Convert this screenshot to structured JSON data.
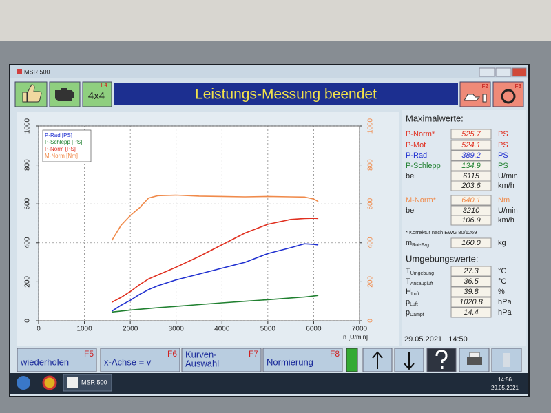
{
  "window": {
    "title": "MSR 500"
  },
  "header": {
    "title": "Leistungs-Messung beendet",
    "mode_button": "4x4",
    "mode_key": "F4",
    "right_keys": [
      "F2",
      "F3"
    ]
  },
  "chart_data": {
    "type": "line",
    "x_label": "n [U/min]",
    "x": [
      1600,
      1800,
      2000,
      2200,
      2400,
      2600,
      3000,
      3500,
      4000,
      4500,
      5000,
      5500,
      5800,
      6000,
      6100
    ],
    "series": [
      {
        "name": "P-Rad [PS]",
        "color": "#2030d0",
        "values": [
          50,
          80,
          105,
          135,
          160,
          180,
          210,
          240,
          270,
          300,
          345,
          375,
          395,
          392,
          389
        ]
      },
      {
        "name": "P-Schlepp [PS]",
        "color": "#208030",
        "values": [
          45,
          50,
          55,
          59,
          63,
          67,
          74,
          83,
          92,
          100,
          108,
          117,
          122,
          127,
          130
        ]
      },
      {
        "name": "P-Norm [PS]",
        "color": "#e03020",
        "values": [
          95,
          120,
          150,
          185,
          215,
          235,
          275,
          330,
          390,
          450,
          495,
          520,
          525,
          526,
          525
        ]
      },
      {
        "name": "M-Norm [Nm]",
        "color": "#f08a4a",
        "axis": "y2",
        "values": [
          413,
          490,
          540,
          580,
          630,
          642,
          645,
          640,
          638,
          636,
          638,
          636,
          635,
          625,
          612
        ]
      }
    ],
    "xlim": [
      0,
      7000
    ],
    "xticks": [
      0,
      1000,
      2000,
      3000,
      4000,
      5000,
      6000,
      7000
    ],
    "ylim": [
      0,
      1000
    ],
    "yticks": [
      0,
      200,
      400,
      600,
      800,
      1000
    ],
    "y2lim": [
      0,
      1000
    ],
    "y2ticks": [
      0,
      200,
      400,
      600,
      800,
      1000
    ],
    "grid": true,
    "legend": "top-left"
  },
  "max_values": {
    "title": "Maximalwerte:",
    "rows": [
      {
        "label": "P-Norm*",
        "value": "525.7",
        "unit": "PS",
        "color": "#e03020"
      },
      {
        "label": "P-Mot",
        "value": "524.1",
        "unit": "PS",
        "color": "#e03020"
      },
      {
        "label": "P-Rad",
        "value": "389.2",
        "unit": "PS",
        "color": "#2030d0"
      },
      {
        "label": "P-Schlepp",
        "value": "134.9",
        "unit": "PS",
        "color": "#208030"
      },
      {
        "label": "bei",
        "value": "6115",
        "unit": "U/min",
        "color": "#222222"
      },
      {
        "value": "203.6",
        "unit": "km/h",
        "color": "#222222"
      },
      {
        "label": "M-Norm*",
        "value": "640.1",
        "unit": "Nm",
        "color": "#f08a4a"
      },
      {
        "label": "bei",
        "value": "3210",
        "unit": "U/min",
        "color": "#222222"
      },
      {
        "value": "106.9",
        "unit": "km/h",
        "color": "#222222"
      }
    ],
    "note": "* Korrektur nach EWG 80/1269",
    "mass": {
      "symbol": "m",
      "sub": "Rot-Fzg",
      "value": "160.0",
      "unit": "kg"
    }
  },
  "ambient": {
    "title": "Umgebungswerte:",
    "rows": [
      {
        "symbol": "T",
        "sub": "Umgebung",
        "value": "27.3",
        "unit": "°C"
      },
      {
        "symbol": "T",
        "sub": "Ansaugluft",
        "value": "36.5",
        "unit": "°C"
      },
      {
        "symbol": "H",
        "sub": "Luft",
        "value": "39.8",
        "unit": "%"
      },
      {
        "symbol": "p",
        "sub": "Luft",
        "value": "1020.8",
        "unit": "hPa"
      },
      {
        "symbol": "p",
        "sub": "Dampf",
        "value": "14.4",
        "unit": "hPa"
      }
    ]
  },
  "timestamp": "29.05.2021   14:50",
  "function_keys": [
    {
      "label": [
        "wiederholen"
      ],
      "key": "F5"
    },
    {
      "label": [
        "x-Achse = v"
      ],
      "key": "F6"
    },
    {
      "label": [
        "Kurven-",
        "Auswahl"
      ],
      "key": "F7"
    },
    {
      "label": [
        "Normierung"
      ],
      "key": "F8"
    }
  ],
  "taskbar": {
    "app": "MSR 500",
    "time": "14:56",
    "date": "29.05.2021"
  }
}
